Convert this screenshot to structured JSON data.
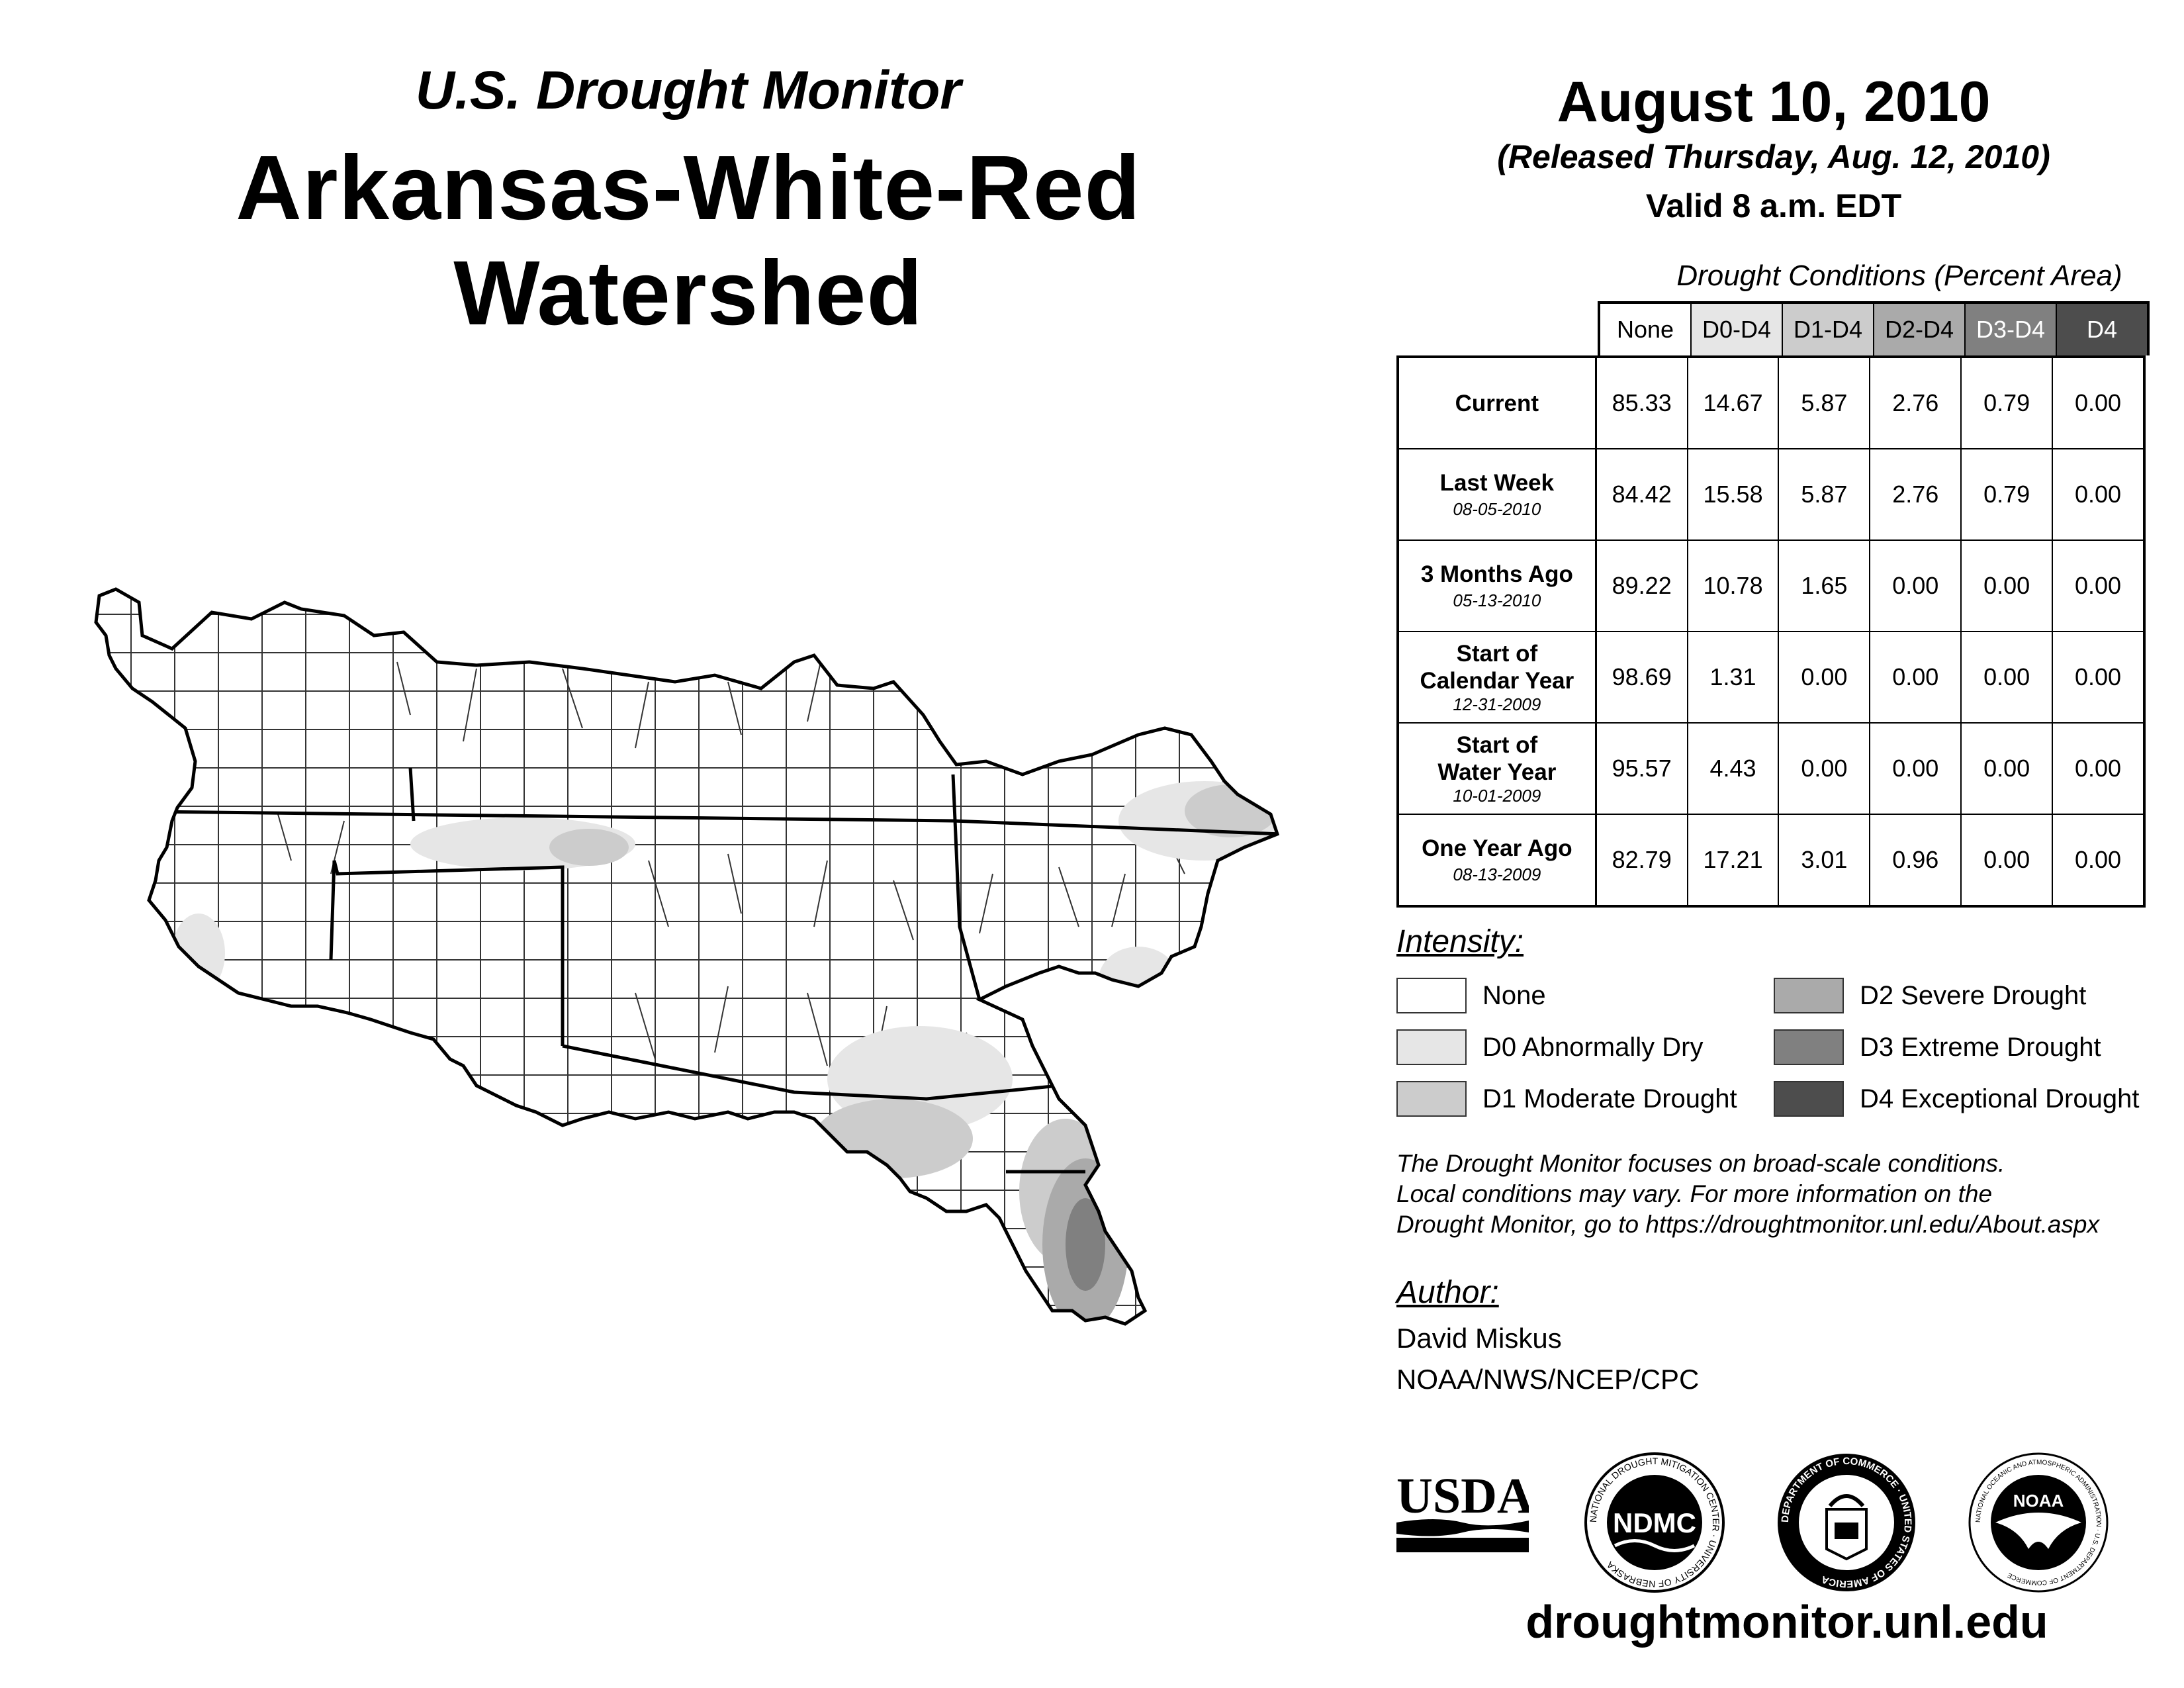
{
  "header": {
    "subtitle": "U.S. Drought Monitor",
    "title": "Arkansas-White-Red Watershed",
    "date": "August 10, 2010",
    "released": "(Released Thursday, Aug. 12, 2010)",
    "valid": "Valid 8 a.m. EDT"
  },
  "table": {
    "caption": "Drought Conditions (Percent Area)",
    "columns": [
      "None",
      "D0-D4",
      "D1-D4",
      "D2-D4",
      "D3-D4",
      "D4"
    ],
    "rows": [
      {
        "label": "Current",
        "date": "",
        "values": [
          "85.33",
          "14.67",
          "5.87",
          "2.76",
          "0.79",
          "0.00"
        ]
      },
      {
        "label": "Last Week",
        "date": "08-05-2010",
        "values": [
          "84.42",
          "15.58",
          "5.87",
          "2.76",
          "0.79",
          "0.00"
        ]
      },
      {
        "label": "3 Months Ago",
        "date": "05-13-2010",
        "values": [
          "89.22",
          "10.78",
          "1.65",
          "0.00",
          "0.00",
          "0.00"
        ]
      },
      {
        "label": "Start of Calendar Year",
        "date": "12-31-2009",
        "values": [
          "98.69",
          "1.31",
          "0.00",
          "0.00",
          "0.00",
          "0.00"
        ]
      },
      {
        "label": "Start of Water Year",
        "date": "10-01-2009",
        "values": [
          "95.57",
          "4.43",
          "0.00",
          "0.00",
          "0.00",
          "0.00"
        ]
      },
      {
        "label": "One Year Ago",
        "date": "08-13-2009",
        "values": [
          "82.79",
          "17.21",
          "3.01",
          "0.96",
          "0.00",
          "0.00"
        ]
      }
    ]
  },
  "legend": {
    "title": "Intensity:",
    "items": [
      {
        "label": "None",
        "color": "#ffffff"
      },
      {
        "label": "D0 Abnormally Dry",
        "color": "#e6e6e6"
      },
      {
        "label": "D1 Moderate Drought",
        "color": "#cccccc"
      },
      {
        "label": "D2 Severe Drought",
        "color": "#aaaaaa"
      },
      {
        "label": "D3 Extreme Drought",
        "color": "#808080"
      },
      {
        "label": "D4 Exceptional Drought",
        "color": "#4d4d4d"
      }
    ]
  },
  "note": {
    "line1": "The Drought Monitor focuses on broad-scale conditions.",
    "line2": "Local conditions may vary. For more information on the",
    "line3": "Drought Monitor, go to https://droughtmonitor.unl.edu/About.aspx"
  },
  "author": {
    "title": "Author:",
    "name": "David Miskus",
    "org": "NOAA/NWS/NCEP/CPC"
  },
  "logos": {
    "usda": "USDA",
    "ndmc": "NDMC",
    "ndmc_ring": "NATIONAL DROUGHT MITIGATION CENTER · UNIVERSITY OF NEBRASKA",
    "doc_ring": "DEPARTMENT OF COMMERCE · UNITED STATES OF AMERICA",
    "noaa": "NOAA",
    "noaa_ring": "NATIONAL OCEANIC AND ATMOSPHERIC ADMINISTRATION · U.S. DEPARTMENT OF COMMERCE"
  },
  "website": "droughtmonitor.unl.edu"
}
